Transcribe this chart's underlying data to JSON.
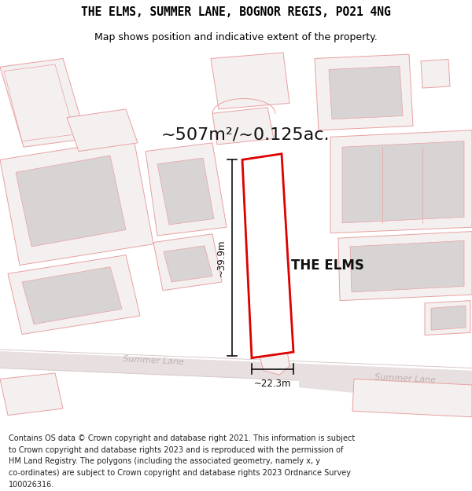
{
  "title_line1": "THE ELMS, SUMMER LANE, BOGNOR REGIS, PO21 4NG",
  "title_line2": "Map shows position and indicative extent of the property.",
  "area_text": "~507m²/~0.125ac.",
  "property_label": "THE ELMS",
  "dim_vertical": "~39.9m",
  "dim_horizontal": "~22.3m",
  "street_label1": "Summer Lane",
  "street_label2": "Summer Lane",
  "footer_lines": [
    "Contains OS data © Crown copyright and database right 2021. This information is subject",
    "to Crown copyright and database rights 2023 and is reproduced with the permission of",
    "HM Land Registry. The polygons (including the associated geometry, namely x, y",
    "co-ordinates) are subject to Crown copyright and database rights 2023 Ordnance Survey",
    "100026316."
  ],
  "bg_color": "#ffffff",
  "map_bg": "#ffffff",
  "road_fill": "#e8e0e0",
  "road_line": "#d8c8c8",
  "bld_outline": "#e8a0a0",
  "bld_fill_light": "#f5f0f0",
  "bld_fill_gray": "#d8d4d4",
  "bld_fill_mid": "#e0dcdc",
  "property_stroke": "#dd0000",
  "property_fill": "#ffffff",
  "dim_color": "#111111",
  "title_color": "#000000",
  "footer_color": "#222222",
  "street_text_color": "#c0b0b0"
}
